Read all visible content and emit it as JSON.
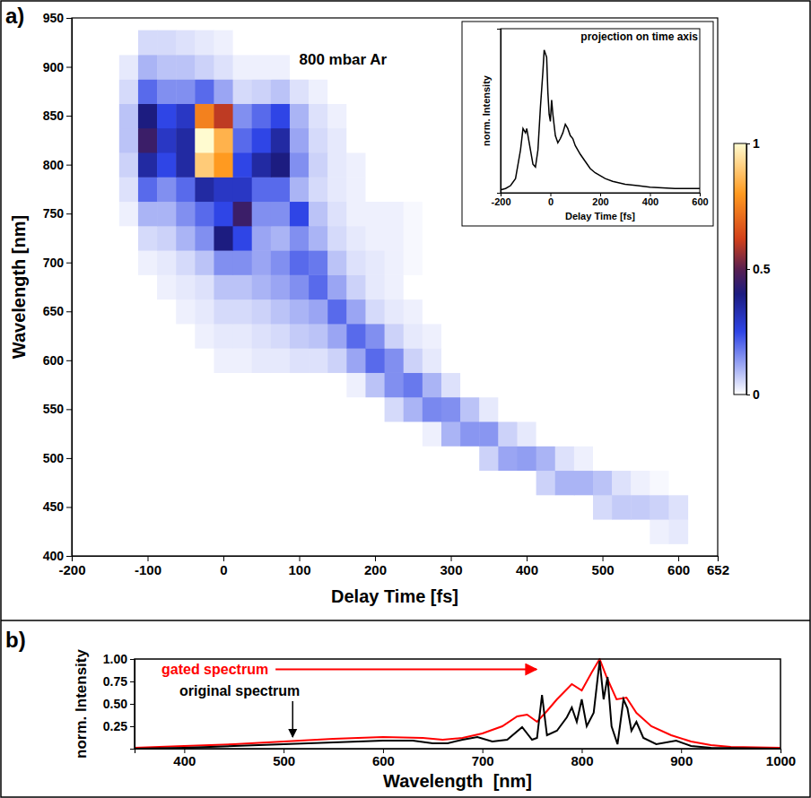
{
  "chart_data": [
    {
      "type": "heatmap",
      "panel_label": "a)",
      "annotation": "800 mbar Ar",
      "x_label": "Delay Time [fs]",
      "y_label": "Wavelength [nm]",
      "x": [
        -150,
        -125,
        -100,
        -75,
        -50,
        -25,
        0,
        25,
        50,
        75,
        100,
        125,
        150,
        175,
        200,
        225,
        250,
        275,
        300,
        325,
        350,
        375,
        400,
        425,
        450,
        475,
        500,
        525,
        550,
        575,
        600
      ],
      "y": [
        425,
        450,
        475,
        500,
        525,
        550,
        575,
        600,
        625,
        650,
        675,
        700,
        725,
        750,
        775,
        800,
        825,
        850,
        875,
        900,
        925
      ],
      "z": [
        [
          0,
          0,
          0,
          0,
          0,
          0,
          0,
          0,
          0,
          0,
          0,
          0,
          0,
          0,
          0,
          0,
          0,
          0,
          0,
          0,
          0,
          0,
          0,
          0,
          0,
          0,
          0,
          0,
          0,
          0.02,
          0.03
        ],
        [
          0,
          0,
          0,
          0,
          0,
          0,
          0,
          0,
          0,
          0,
          0,
          0,
          0,
          0,
          0,
          0,
          0,
          0,
          0,
          0,
          0,
          0,
          0,
          0,
          0,
          0,
          0.05,
          0.07,
          0.07,
          0.06,
          0.04
        ],
        [
          0,
          0,
          0,
          0,
          0,
          0,
          0,
          0,
          0,
          0,
          0,
          0,
          0,
          0,
          0,
          0,
          0,
          0,
          0,
          0,
          0,
          0,
          0,
          0.06,
          0.1,
          0.1,
          0.08,
          0.04,
          0.02,
          0.01,
          0
        ],
        [
          0,
          0,
          0,
          0,
          0,
          0,
          0,
          0,
          0,
          0,
          0,
          0,
          0,
          0,
          0,
          0,
          0,
          0,
          0,
          0,
          0.06,
          0.12,
          0.13,
          0.1,
          0.04,
          0.02,
          0,
          0,
          0,
          0,
          0
        ],
        [
          0,
          0,
          0,
          0,
          0,
          0,
          0,
          0,
          0,
          0,
          0,
          0,
          0,
          0,
          0,
          0,
          0,
          0.02,
          0.1,
          0.14,
          0.14,
          0.06,
          0.03,
          0,
          0,
          0,
          0,
          0,
          0,
          0,
          0
        ],
        [
          0,
          0,
          0,
          0,
          0,
          0,
          0,
          0,
          0,
          0,
          0,
          0,
          0,
          0,
          0,
          0.05,
          0.1,
          0.16,
          0.15,
          0.08,
          0.03,
          0,
          0,
          0,
          0,
          0,
          0,
          0,
          0,
          0,
          0
        ],
        [
          0,
          0,
          0,
          0,
          0,
          0,
          0,
          0,
          0,
          0,
          0,
          0,
          0,
          0.02,
          0.08,
          0.15,
          0.18,
          0.1,
          0.04,
          0,
          0,
          0,
          0,
          0,
          0,
          0,
          0,
          0,
          0,
          0,
          0
        ],
        [
          0,
          0,
          0,
          0,
          0,
          0,
          0.02,
          0.02,
          0.03,
          0.03,
          0.04,
          0.04,
          0.06,
          0.12,
          0.2,
          0.15,
          0.06,
          0.03,
          0,
          0,
          0,
          0,
          0,
          0,
          0,
          0,
          0,
          0,
          0,
          0,
          0
        ],
        [
          0,
          0,
          0,
          0,
          0,
          0.02,
          0.03,
          0.03,
          0.04,
          0.05,
          0.07,
          0.08,
          0.12,
          0.2,
          0.15,
          0.06,
          0.03,
          0.02,
          0,
          0,
          0,
          0,
          0,
          0,
          0,
          0,
          0,
          0,
          0,
          0,
          0
        ],
        [
          0,
          0,
          0,
          0,
          0.02,
          0.03,
          0.05,
          0.05,
          0.06,
          0.08,
          0.1,
          0.12,
          0.2,
          0.12,
          0.05,
          0.03,
          0.02,
          0,
          0,
          0,
          0,
          0,
          0,
          0,
          0,
          0,
          0,
          0,
          0,
          0,
          0
        ],
        [
          0,
          0,
          0,
          0.02,
          0.03,
          0.04,
          0.08,
          0.08,
          0.1,
          0.12,
          0.15,
          0.2,
          0.12,
          0.06,
          0.03,
          0.02,
          0,
          0,
          0,
          0,
          0,
          0,
          0,
          0,
          0,
          0,
          0,
          0,
          0,
          0,
          0
        ],
        [
          0,
          0,
          0.02,
          0.03,
          0.05,
          0.08,
          0.15,
          0.15,
          0.12,
          0.15,
          0.2,
          0.18,
          0.08,
          0.04,
          0.03,
          0.02,
          0.01,
          0,
          0,
          0,
          0,
          0,
          0,
          0,
          0,
          0,
          0,
          0,
          0,
          0,
          0
        ],
        [
          0,
          0,
          0.05,
          0.06,
          0.1,
          0.15,
          0.4,
          0.25,
          0.12,
          0.1,
          0.15,
          0.1,
          0.05,
          0.03,
          0.02,
          0.02,
          0.01,
          0,
          0,
          0,
          0,
          0,
          0,
          0,
          0,
          0,
          0,
          0,
          0,
          0,
          0
        ],
        [
          0,
          0.02,
          0.1,
          0.1,
          0.15,
          0.2,
          0.25,
          0.45,
          0.15,
          0.15,
          0.25,
          0.08,
          0.04,
          0.02,
          0.02,
          0.02,
          0.01,
          0,
          0,
          0,
          0,
          0,
          0,
          0,
          0,
          0,
          0,
          0,
          0,
          0,
          0
        ],
        [
          0,
          0.04,
          0.2,
          0.15,
          0.2,
          0.35,
          0.3,
          0.3,
          0.2,
          0.2,
          0.1,
          0.05,
          0.03,
          0.02,
          0,
          0,
          0,
          0,
          0,
          0,
          0,
          0,
          0,
          0,
          0,
          0,
          0,
          0,
          0,
          0,
          0
        ],
        [
          0,
          0.06,
          0.35,
          0.25,
          0.35,
          0.9,
          0.8,
          0.25,
          0.35,
          0.4,
          0.15,
          0.06,
          0.03,
          0.02,
          0,
          0,
          0,
          0,
          0,
          0,
          0,
          0,
          0,
          0,
          0,
          0,
          0,
          0,
          0,
          0,
          0
        ],
        [
          0,
          0.08,
          0.45,
          0.3,
          0.35,
          1,
          0.85,
          0.2,
          0.25,
          0.35,
          0.12,
          0.05,
          0.03,
          0,
          0,
          0,
          0,
          0,
          0,
          0,
          0,
          0,
          0,
          0,
          0,
          0,
          0,
          0,
          0,
          0,
          0
        ],
        [
          0,
          0.08,
          0.4,
          0.25,
          0.3,
          0.75,
          0.6,
          0.15,
          0.2,
          0.25,
          0.1,
          0.04,
          0.02,
          0,
          0,
          0,
          0,
          0,
          0,
          0,
          0,
          0,
          0,
          0,
          0,
          0,
          0,
          0,
          0,
          0,
          0
        ],
        [
          0,
          0.05,
          0.2,
          0.15,
          0.15,
          0.2,
          0.12,
          0.05,
          0.06,
          0.08,
          0.04,
          0.02,
          0,
          0,
          0,
          0,
          0,
          0,
          0,
          0,
          0,
          0,
          0,
          0,
          0,
          0,
          0,
          0,
          0,
          0,
          0
        ],
        [
          0,
          0.03,
          0.1,
          0.08,
          0.08,
          0.06,
          0.04,
          0.02,
          0.02,
          0.02,
          0,
          0,
          0,
          0,
          0,
          0,
          0,
          0,
          0,
          0,
          0,
          0,
          0,
          0,
          0,
          0,
          0,
          0,
          0,
          0,
          0
        ],
        [
          0,
          0,
          0.05,
          0.05,
          0.04,
          0.03,
          0.02,
          0,
          0,
          0,
          0,
          0,
          0,
          0,
          0,
          0,
          0,
          0,
          0,
          0,
          0,
          0,
          0,
          0,
          0,
          0,
          0,
          0,
          0,
          0,
          0
        ]
      ],
      "xlim": [
        -200,
        652
      ],
      "ylim": [
        400,
        950
      ],
      "xticks": [
        -200,
        -100,
        0,
        100,
        200,
        300,
        400,
        500,
        600,
        652
      ],
      "yticks": [
        400,
        450,
        500,
        550,
        600,
        650,
        700,
        750,
        800,
        850,
        900,
        950
      ],
      "colorbar_range": [
        0,
        1
      ],
      "colorbar_ticks": [
        0,
        0.5,
        1
      ]
    },
    {
      "type": "line",
      "title": "projection on time axis",
      "x_label": "Delay Time [fs]",
      "y_label": "norm. Intensity",
      "x": [
        -200,
        -180,
        -160,
        -140,
        -120,
        -110,
        -100,
        -95,
        -85,
        -70,
        -60,
        -50,
        -40,
        -30,
        -25,
        -15,
        -10,
        -5,
        0,
        5,
        10,
        20,
        30,
        40,
        50,
        60,
        70,
        80,
        90,
        100,
        120,
        140,
        160,
        180,
        200,
        220,
        250,
        300,
        350,
        400,
        500,
        600
      ],
      "values": [
        0.02,
        0.03,
        0.05,
        0.1,
        0.3,
        0.45,
        0.42,
        0.45,
        0.35,
        0.2,
        0.18,
        0.3,
        0.6,
        0.85,
        1.0,
        0.95,
        0.7,
        0.55,
        0.5,
        0.65,
        0.55,
        0.4,
        0.35,
        0.38,
        0.42,
        0.48,
        0.45,
        0.4,
        0.38,
        0.33,
        0.27,
        0.22,
        0.17,
        0.14,
        0.12,
        0.1,
        0.08,
        0.06,
        0.05,
        0.04,
        0.03,
        0.03
      ],
      "color": "#000000",
      "xlim": [
        -200,
        600
      ],
      "ylim": [
        0,
        1.15
      ],
      "xticks": [
        -200,
        0,
        200,
        400,
        600
      ],
      "tick_labels": "x"
    },
    {
      "type": "line",
      "panel_label": "b)",
      "x_label": "Wavelength  [nm]",
      "y_label": "norm. Intensity",
      "series": [
        {
          "name": "gated spectrum",
          "color": "#ff0000",
          "x": [
            350,
            400,
            450,
            500,
            550,
            600,
            640,
            660,
            680,
            700,
            720,
            735,
            745,
            755,
            765,
            775,
            790,
            800,
            810,
            818,
            825,
            835,
            845,
            855,
            870,
            890,
            910,
            930,
            950,
            1000
          ],
          "values": [
            0.01,
            0.03,
            0.05,
            0.08,
            0.11,
            0.13,
            0.12,
            0.1,
            0.12,
            0.17,
            0.25,
            0.36,
            0.38,
            0.3,
            0.42,
            0.55,
            0.72,
            0.65,
            0.85,
            1.0,
            0.8,
            0.55,
            0.57,
            0.4,
            0.25,
            0.15,
            0.08,
            0.04,
            0.02,
            0.01
          ]
        },
        {
          "name": "original spectrum",
          "color": "#000000",
          "x": [
            350,
            400,
            450,
            500,
            550,
            600,
            630,
            650,
            665,
            680,
            695,
            710,
            725,
            740,
            750,
            755,
            760,
            765,
            775,
            785,
            790,
            795,
            800,
            805,
            812,
            818,
            822,
            826,
            830,
            836,
            842,
            846,
            850,
            855,
            862,
            875,
            895,
            910,
            930,
            1000
          ],
          "values": [
            0,
            0.01,
            0.03,
            0.05,
            0.07,
            0.09,
            0.09,
            0.06,
            0.06,
            0.1,
            0.13,
            0.08,
            0.1,
            0.24,
            0.1,
            0.12,
            0.6,
            0.15,
            0.2,
            0.35,
            0.46,
            0.3,
            0.55,
            0.25,
            0.4,
            0.98,
            0.55,
            0.8,
            0.25,
            0.05,
            0.55,
            0.45,
            0.2,
            0.3,
            0.12,
            0.05,
            0.09,
            0.03,
            0.01,
            0
          ]
        }
      ],
      "xlim": [
        350,
        1000
      ],
      "ylim": [
        0,
        1
      ],
      "xticks": [
        400,
        500,
        600,
        700,
        800,
        900,
        1000
      ],
      "yticks": [
        0.25,
        {
          "value": 0.5,
          "label": "0.50"
        },
        0.75,
        {
          "value": 1,
          "label": "1.00"
        }
      ],
      "legend": "upper left"
    }
  ]
}
